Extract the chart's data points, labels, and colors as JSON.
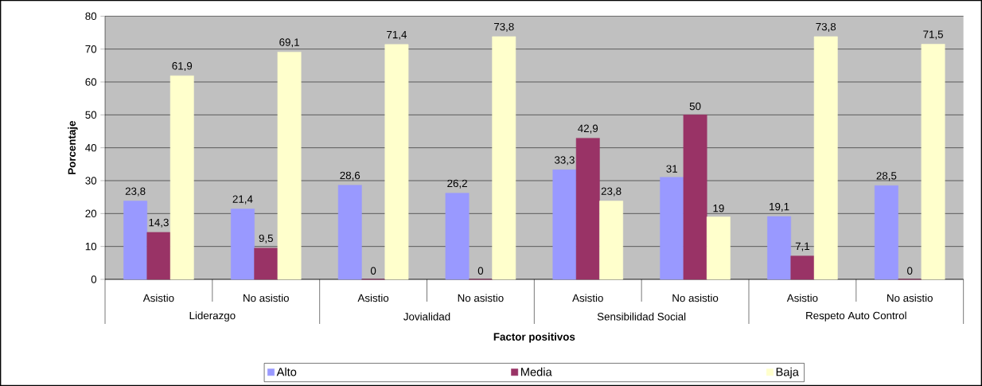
{
  "chart_data": {
    "type": "bar",
    "xlabel": "Factor positivos",
    "ylabel": "Porcentaje",
    "categories": [
      "Asistio",
      "No asistio",
      "Asistio",
      "No asistio",
      "Asistio",
      "No asistio",
      "Asistio",
      "No asistio"
    ],
    "annotations": [
      "Liderazgo",
      "Jovialidad",
      "Sensibilidad Social",
      "Respeto Auto Control"
    ],
    "series": [
      {
        "name": "Alto",
        "color": "#9999ff",
        "values": [
          23.8,
          21.4,
          28.6,
          26.2,
          33.3,
          31,
          19.1,
          28.5
        ],
        "value_labels": [
          "23,8",
          "21,4",
          "28,6",
          "26,2",
          "33,3",
          "31",
          "19,1",
          "28,5"
        ]
      },
      {
        "name": "Media",
        "color": "#993366",
        "values": [
          14.3,
          9.5,
          0,
          0,
          42.9,
          50,
          7.1,
          0
        ],
        "value_labels": [
          "14,3",
          "9,5",
          "0",
          "0",
          "42,9",
          "50",
          "7,1",
          "0"
        ]
      },
      {
        "name": "Baja",
        "color": "#ffffcc",
        "values": [
          61.9,
          69.1,
          71.4,
          73.8,
          23.8,
          19,
          73.8,
          71.5
        ],
        "value_labels": [
          "61,9",
          "69,1",
          "71,4",
          "73,8",
          "23,8",
          "19",
          "73,8",
          "71,5"
        ]
      }
    ],
    "ylim": [
      0,
      80
    ],
    "yticks": [
      0,
      10,
      20,
      30,
      40,
      50,
      60,
      70,
      80
    ],
    "grid": "y",
    "legend": "bottom"
  }
}
